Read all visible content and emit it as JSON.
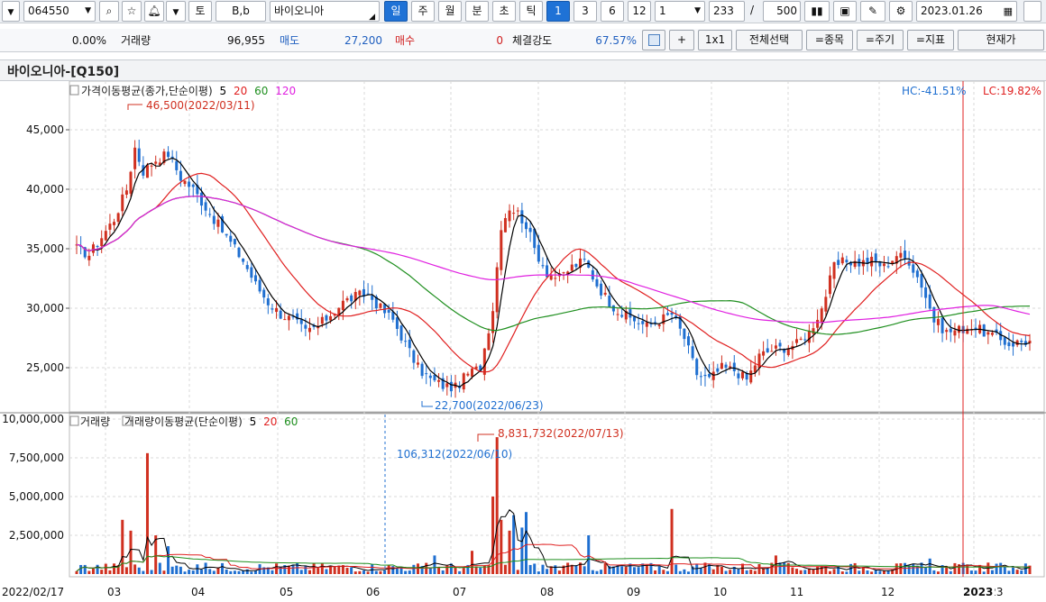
{
  "toolbar": {
    "code": "064550",
    "search_icon": "search-icon",
    "star_icon": "star-icon",
    "bell_icon": "bell-icon",
    "to": "토",
    "bb": "B,b",
    "stock_name": "바이오니아",
    "periods": [
      "일",
      "주",
      "월",
      "분",
      "초",
      "틱"
    ],
    "active_period": "일",
    "numbers": [
      "1",
      "3",
      "6",
      "12"
    ],
    "active_number": "1",
    "unit_select": "1",
    "count1": "233",
    "slash": "/",
    "count2": "500",
    "date": "2023.01.26"
  },
  "info_bar": {
    "change_pct": "0.00%",
    "volume_label": "거래량",
    "volume": "96,955",
    "sell_label": "매도",
    "sell_price": "27,200",
    "buy_label": "매수",
    "buy_qty": "0",
    "strength_label": "체결강도",
    "strength": "67.57%",
    "plus": "+",
    "one_by_one": "1x1",
    "select_all": "전체선택",
    "item_btn": "=종목",
    "period_btn": "=주기",
    "indicator_btn": "=지표",
    "current_price": "현재가"
  },
  "chart_title": "바이오니아-[Q150]",
  "price_panel": {
    "legend_prefix": "가격이동평균(종가,단순이평)",
    "ma_periods": [
      "5",
      "20",
      "60",
      "120"
    ],
    "ma_colors": [
      "#000000",
      "#e02020",
      "#1f8f1f",
      "#e020e0"
    ],
    "hc_text": "HC:-41.51%",
    "lc_text": "LC:19.82%",
    "high_annotation": "46,500(2022/03/11)",
    "low_annotation": "22,700(2022/06/23)",
    "y_ticks": [
      "45,000",
      "40,000",
      "35,000",
      "30,000",
      "25,000"
    ]
  },
  "volume_panel": {
    "legend_prefix": "거래량",
    "legend_ma": "거래량이동평균(단순이평)",
    "ma_periods": [
      "5",
      "20",
      "60"
    ],
    "max_annotation": "8,831,732(2022/07/13)",
    "min_annotation": "106,312(2022/06/10)",
    "y_ticks": [
      "10,000,000",
      "7,500,000",
      "5,000,000",
      "2,500,000"
    ]
  },
  "x_axis": {
    "start_label": "2022/02/17",
    "months": [
      "03",
      "04",
      "05",
      "06",
      "07",
      "08",
      "09",
      "10",
      "11",
      "12",
      "2023"
    ]
  },
  "colors": {
    "up": "#d03020",
    "down": "#1f6fd0",
    "grid": "#dddddd",
    "crosshair": "#e02020",
    "accent": "#1f72d6"
  },
  "chart_data": {
    "type": "candlestick",
    "price_ylim": [
      22000,
      48000
    ],
    "volume_ylim": [
      0,
      10000000
    ],
    "grid": true,
    "months": [
      "03",
      "04",
      "05",
      "06",
      "07",
      "08",
      "09",
      "10",
      "11",
      "12",
      "2023"
    ],
    "close_path_keys": [
      [
        0,
        35000
      ],
      [
        3,
        34500
      ],
      [
        6,
        36000
      ],
      [
        9,
        37500
      ],
      [
        12,
        40000
      ],
      [
        14,
        43500
      ],
      [
        16,
        41500
      ],
      [
        19,
        42500
      ],
      [
        22,
        43000
      ],
      [
        25,
        41000
      ],
      [
        28,
        40000
      ],
      [
        31,
        38500
      ],
      [
        34,
        37000
      ],
      [
        37,
        35500
      ],
      [
        40,
        34000
      ],
      [
        43,
        32000
      ],
      [
        46,
        30500
      ],
      [
        49,
        29500
      ],
      [
        52,
        29000
      ],
      [
        55,
        28000
      ],
      [
        58,
        28500
      ],
      [
        61,
        29500
      ],
      [
        64,
        30500
      ],
      [
        67,
        31000
      ],
      [
        70,
        31200
      ],
      [
        73,
        30000
      ],
      [
        76,
        29000
      ],
      [
        79,
        27000
      ],
      [
        82,
        25000
      ],
      [
        85,
        24000
      ],
      [
        88,
        23500
      ],
      [
        91,
        23300
      ],
      [
        94,
        24500
      ],
      [
        97,
        25000
      ],
      [
        100,
        30000
      ],
      [
        102,
        37000
      ],
      [
        104,
        38500
      ],
      [
        106,
        38000
      ],
      [
        108,
        37000
      ],
      [
        110,
        35000
      ],
      [
        113,
        33000
      ],
      [
        116,
        32500
      ],
      [
        119,
        33500
      ],
      [
        122,
        34000
      ],
      [
        125,
        32000
      ],
      [
        128,
        30500
      ],
      [
        131,
        29500
      ],
      [
        134,
        29000
      ],
      [
        137,
        28500
      ],
      [
        140,
        29000
      ],
      [
        143,
        29500
      ],
      [
        146,
        27500
      ],
      [
        149,
        24500
      ],
      [
        152,
        24000
      ],
      [
        155,
        25000
      ],
      [
        158,
        24800
      ],
      [
        161,
        24000
      ],
      [
        164,
        26000
      ],
      [
        167,
        26500
      ],
      [
        170,
        26700
      ],
      [
        173,
        27000
      ],
      [
        176,
        28000
      ],
      [
        179,
        30000
      ],
      [
        182,
        33500
      ],
      [
        185,
        34000
      ],
      [
        188,
        33800
      ],
      [
        191,
        34000
      ],
      [
        194,
        33500
      ],
      [
        197,
        34500
      ],
      [
        200,
        34000
      ],
      [
        203,
        32000
      ],
      [
        206,
        29000
      ],
      [
        209,
        28000
      ],
      [
        212,
        28200
      ],
      [
        215,
        28500
      ],
      [
        218,
        28000
      ],
      [
        221,
        27500
      ],
      [
        224,
        27000
      ],
      [
        227,
        27200
      ]
    ],
    "volume_spikes": [
      [
        11,
        3500000
      ],
      [
        13,
        2800000
      ],
      [
        17,
        7800000
      ],
      [
        19,
        2500000
      ],
      [
        22,
        1800000
      ],
      [
        86,
        1200000
      ],
      [
        95,
        1500000
      ],
      [
        100,
        5000000
      ],
      [
        101,
        8831732
      ],
      [
        102,
        3500000
      ],
      [
        104,
        2800000
      ],
      [
        105,
        3800000
      ],
      [
        107,
        3000000
      ],
      [
        108,
        4000000
      ],
      [
        123,
        2500000
      ],
      [
        143,
        4200000
      ],
      [
        168,
        1200000
      ],
      [
        205,
        1000000
      ]
    ]
  }
}
